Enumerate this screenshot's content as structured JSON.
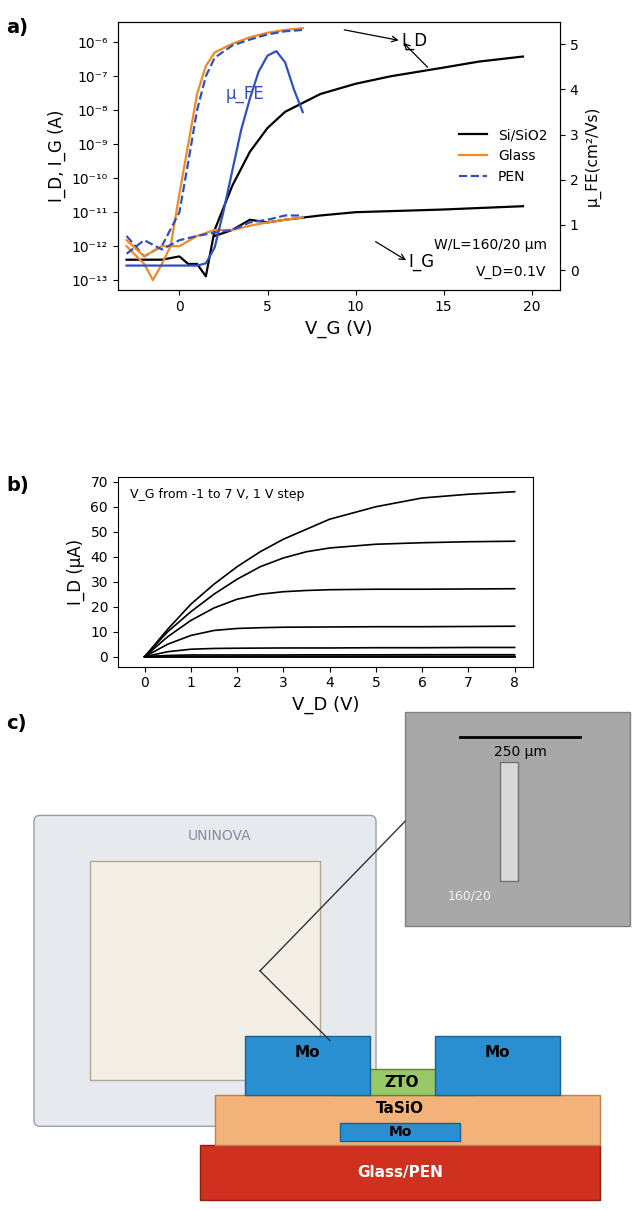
{
  "chart_data": [
    {
      "type": "line",
      "panel": "a)",
      "x_label": "V_G (V)",
      "y_label": "I_D, I_G (A)",
      "y2_label": "μ_FE(cm²/Vs)",
      "log": "y",
      "xlim": [
        -3.5,
        21.6
      ],
      "xticks": [
        0,
        5,
        10,
        15,
        20
      ],
      "ylim": [
        5e-14,
        4e-06
      ],
      "yticks": [
        {
          "value": 1e-13,
          "label": "10⁻¹³"
        },
        {
          "value": 1e-12,
          "label": "10⁻¹²"
        },
        {
          "value": 1e-11,
          "label": "10⁻¹¹"
        },
        {
          "value": 1e-10,
          "label": "10⁻¹⁰"
        },
        {
          "value": 1e-09,
          "label": "10⁻⁹"
        },
        {
          "value": 1e-08,
          "label": "10⁻⁸"
        },
        {
          "value": 1e-07,
          "label": "10⁻⁷"
        },
        {
          "value": 1e-06,
          "label": "10⁻⁶"
        }
      ],
      "y2lim": [
        -0.45,
        5.5
      ],
      "y2ticks": [
        0,
        1,
        2,
        3,
        4,
        5
      ],
      "legend": "center right",
      "series": [
        {
          "name": "Si/SiO2",
          "color": "#000000",
          "line_style": "solid",
          "x": [
            -3,
            -2,
            -1,
            0,
            0.5,
            1,
            1.5,
            2,
            3,
            4,
            5,
            6,
            8,
            10,
            12,
            15,
            17,
            19.5
          ],
          "values": [
            4e-13,
            4e-13,
            4e-13,
            5e-13,
            3e-13,
            3e-13,
            1.3e-13,
            3e-12,
            6e-11,
            6e-10,
            3e-09,
            9e-09,
            3e-08,
            6e-08,
            1e-07,
            1.8e-07,
            2.7e-07,
            3.8e-07
          ]
        },
        {
          "name": "Glass",
          "color": "#f08a24",
          "line_style": "solid",
          "x": [
            -3,
            -2,
            -1.5,
            -1,
            -0.5,
            0,
            0.5,
            1,
            1.5,
            2,
            3,
            4,
            5,
            6,
            7
          ],
          "values": [
            1e-12,
            3e-13,
            1e-13,
            3e-13,
            1e-12,
            3.5e-11,
            1e-09,
            3e-08,
            2e-07,
            5e-07,
            9e-07,
            1.4e-06,
            1.9e-06,
            2.3e-06,
            2.6e-06
          ]
        },
        {
          "name": "PEN",
          "color": "#3050c0",
          "line_style": "dashed",
          "x": [
            -3,
            -2,
            -1,
            0,
            0.5,
            1,
            1.5,
            2,
            3,
            4,
            5,
            6,
            7
          ],
          "values": [
            2e-12,
            5e-13,
            1e-12,
            1e-11,
            3e-10,
            1e-08,
            1e-07,
            3.5e-07,
            8e-07,
            1.2e-06,
            1.7e-06,
            2.1e-06,
            2.3e-06
          ]
        },
        {
          "color": "#000000",
          "line_style": "solid",
          "x": [
            2,
            3,
            4,
            5,
            6,
            8,
            10,
            15,
            19.5
          ],
          "values": [
            2e-12,
            3e-12,
            6e-12,
            5e-12,
            6e-12,
            8e-12,
            1e-11,
            1.2e-11,
            1.5e-11
          ]
        },
        {
          "color": "#f08a24",
          "line_style": "solid",
          "x": [
            -3,
            -2,
            -1,
            0,
            1,
            2,
            3,
            4,
            5,
            6,
            7
          ],
          "values": [
            1.5e-12,
            5e-13,
            1e-12,
            1e-12,
            2e-12,
            3e-12,
            3e-12,
            4e-12,
            5e-12,
            6e-12,
            7e-12
          ]
        },
        {
          "color": "#3050c0",
          "line_style": "dashed",
          "x": [
            -3,
            -2,
            -1,
            0,
            1,
            2,
            3,
            4,
            5,
            6,
            7
          ],
          "values": [
            6e-13,
            1.5e-12,
            8e-13,
            1.5e-12,
            2e-12,
            2.5e-12,
            3e-12,
            5e-12,
            6e-12,
            8e-12,
            8e-12
          ]
        },
        {
          "color": "#3050c0",
          "line_style": "solid",
          "axis": "y2",
          "x": [
            -3,
            -2,
            -1,
            0,
            1,
            1.5,
            2,
            2.5,
            3,
            3.5,
            4,
            4.5,
            5,
            5.5,
            6,
            6.5,
            7
          ],
          "values": [
            0.1,
            0.1,
            0.1,
            0.1,
            0.1,
            0.15,
            0.5,
            1.3,
            2.2,
            3.1,
            3.8,
            4.4,
            4.75,
            4.85,
            4.6,
            4.0,
            3.5
          ]
        }
      ],
      "annotations": [
        {
          "text": "I_D",
          "x": 12.6,
          "y": 1.1e-06,
          "arrows_from": [
            [
              9.2,
              2.4e-06
            ],
            [
              14.2,
              1.6e-07
            ]
          ]
        },
        {
          "text": "I_G",
          "x": 13.0,
          "y": 3.5e-13,
          "arrows_from": [
            [
              11.0,
              1.5e-12
            ]
          ]
        },
        {
          "text": "μ_FE",
          "x": 2.6,
          "y": 3.9,
          "axis": "y2",
          "color": "#3050c0"
        },
        {
          "text": "W/L=160/20 μm"
        },
        {
          "text": "V_D=0.1V"
        }
      ]
    },
    {
      "type": "line",
      "panel": "b)",
      "x_label": "V_D (V)",
      "y_label": "I_D (μA)",
      "xlim": [
        -0.58,
        8.4
      ],
      "xticks": [
        0,
        1,
        2,
        3,
        4,
        5,
        6,
        7,
        8
      ],
      "ylim": [
        -4,
        72
      ],
      "yticks": [
        0,
        10,
        20,
        30,
        40,
        50,
        60,
        70
      ],
      "annotations": [
        {
          "text": "V_G from -1 to 7 V, 1 V step"
        }
      ],
      "x": [
        0,
        0.5,
        1,
        1.5,
        2,
        2.5,
        3,
        3.5,
        4,
        5,
        6,
        7,
        8
      ],
      "series": [
        {
          "color": "#000000",
          "values": [
            0,
            0,
            0,
            0,
            0,
            0,
            0,
            0,
            0,
            0,
            0,
            0,
            0
          ]
        },
        {
          "color": "#000000",
          "values": [
            0,
            0.02,
            0.03,
            0.03,
            0.03,
            0.03,
            0.04,
            0.04,
            0.04,
            0.04,
            0.05,
            0.05,
            0.05
          ]
        },
        {
          "color": "#000000",
          "values": [
            0,
            0.1,
            0.12,
            0.13,
            0.13,
            0.14,
            0.14,
            0.14,
            0.14,
            0.15,
            0.15,
            0.15,
            0.15
          ]
        },
        {
          "color": "#000000",
          "values": [
            0,
            0.5,
            0.7,
            0.7,
            0.7,
            0.7,
            0.7,
            0.75,
            0.75,
            0.75,
            0.8,
            0.8,
            0.8
          ]
        },
        {
          "color": "#000000",
          "values": [
            0,
            2,
            3,
            3.3,
            3.4,
            3.45,
            3.5,
            3.5,
            3.5,
            3.6,
            3.6,
            3.7,
            3.7
          ]
        },
        {
          "color": "#000000",
          "values": [
            0,
            5,
            8.5,
            10.5,
            11.3,
            11.6,
            11.8,
            11.85,
            11.9,
            12,
            12,
            12.1,
            12.2
          ]
        },
        {
          "color": "#000000",
          "values": [
            0,
            8,
            14.5,
            19.5,
            23,
            25,
            26,
            26.5,
            26.8,
            27,
            27,
            27.1,
            27.2
          ]
        },
        {
          "color": "#000000",
          "values": [
            0,
            10,
            18,
            25,
            31,
            36,
            39.5,
            42,
            43.5,
            45,
            45.6,
            46,
            46.2
          ]
        },
        {
          "color": "#000000",
          "values": [
            0,
            11,
            21,
            29,
            36,
            42,
            47,
            51,
            55,
            60,
            63.5,
            65,
            66
          ]
        }
      ]
    }
  ],
  "diagram": {
    "panel": "c)",
    "photo_text": "UNINOVA",
    "micrograph": {
      "scale_bar": "250 μm",
      "label": "160/20"
    },
    "stack": {
      "source": "Mo",
      "drain": "Mo",
      "channel": "ZTO",
      "dielectric": "TaSiO",
      "gate": "Mo",
      "substrate": "Glass/PEN"
    }
  }
}
